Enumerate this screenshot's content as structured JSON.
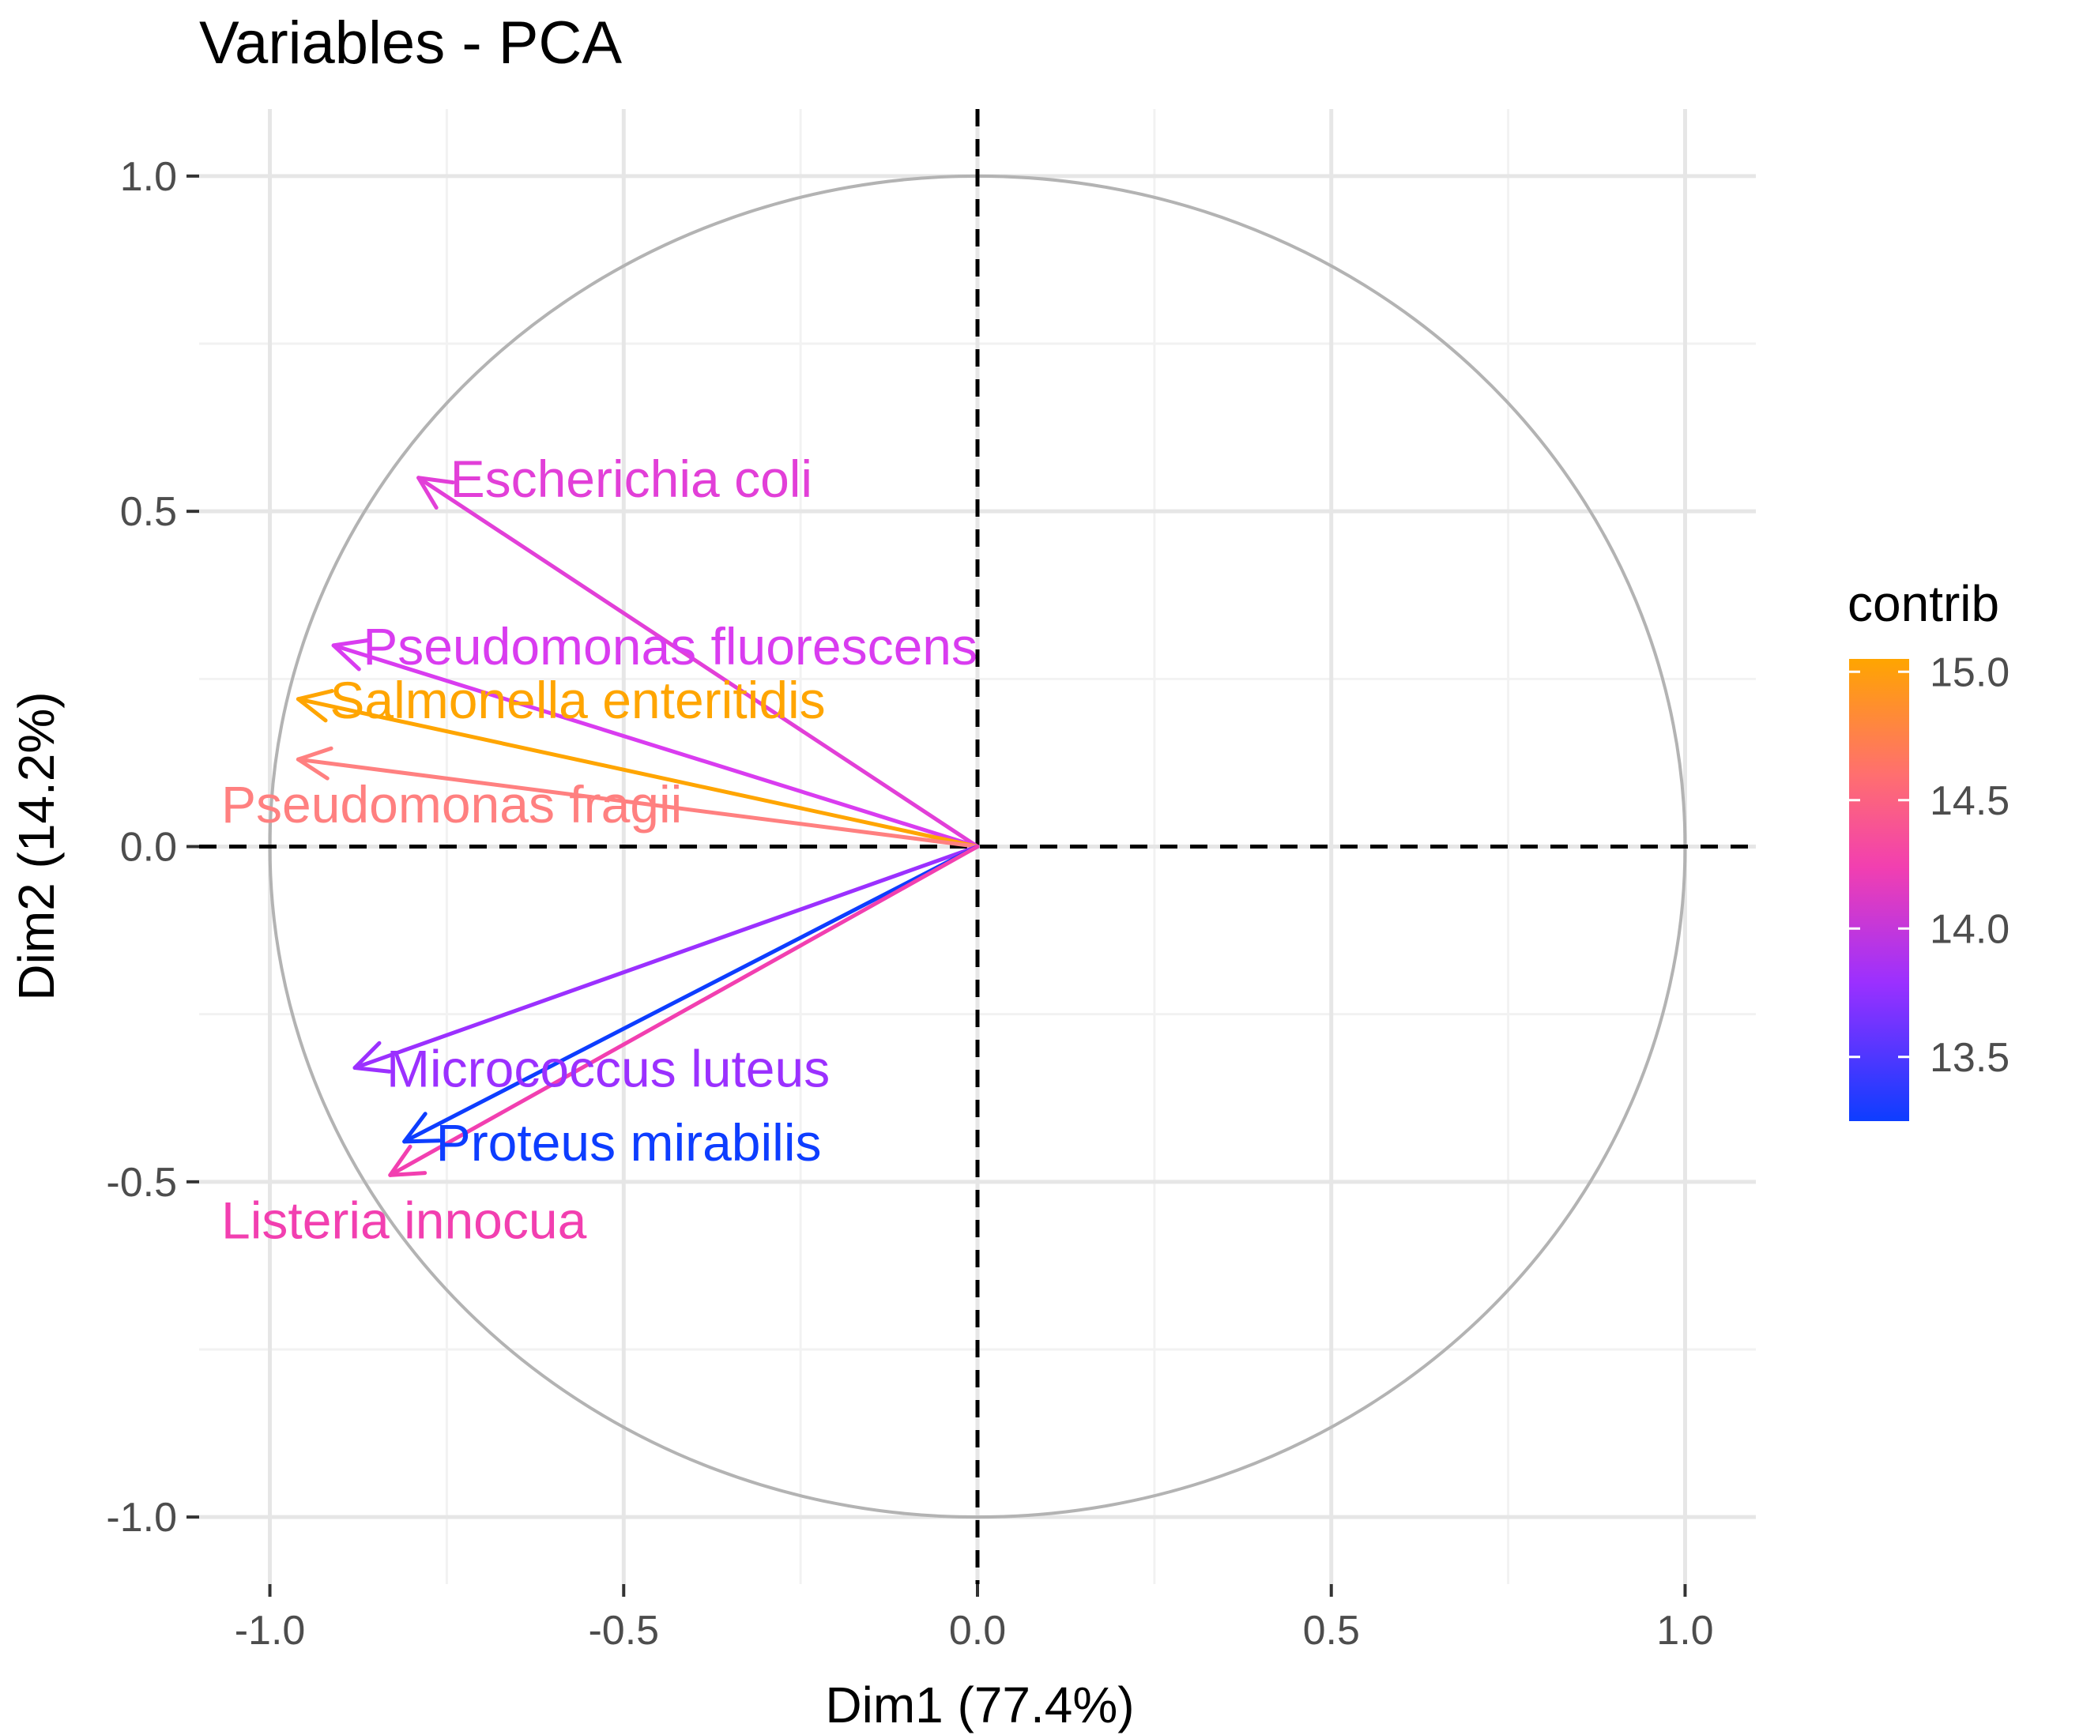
{
  "chart_data": {
    "type": "scatter",
    "subtype": "pca-variable-correlation-circle",
    "title": "Variables - PCA",
    "xlabel": "Dim1 (77.4%)",
    "ylabel": "Dim2 (14.2%)",
    "xlim": [
      -1.1,
      1.1
    ],
    "ylim": [
      -1.1,
      1.1
    ],
    "x_ticks": [
      {
        "value": -1.0,
        "label": "-1.0"
      },
      {
        "value": -0.5,
        "label": "-0.5"
      },
      {
        "value": 0.0,
        "label": "0.0"
      },
      {
        "value": 0.5,
        "label": "0.5"
      },
      {
        "value": 1.0,
        "label": "1.0"
      }
    ],
    "y_ticks": [
      {
        "value": 1.0,
        "label": "1.0"
      },
      {
        "value": 0.5,
        "label": "0.5"
      },
      {
        "value": 0.0,
        "label": "0.0"
      },
      {
        "value": -0.5,
        "label": "-0.5"
      },
      {
        "value": -1.0,
        "label": "-1.0"
      }
    ],
    "grid": true,
    "unit_circle": true,
    "zero_lines": "dashed",
    "colors": {
      "circle": "#b3b3b3",
      "grid_major": "#e6e6e6",
      "grid_minor": "#f2f2f2",
      "axis_text": "#4d4d4d",
      "zero_line": "#000000"
    },
    "variables": [
      {
        "name": "Escherichia coli",
        "x": -0.79,
        "y": 0.55,
        "contrib": 14.3,
        "color": "#e23fd8",
        "label_anchor": "end"
      },
      {
        "name": "Pseudomonas fluorescens",
        "x": -0.91,
        "y": 0.3,
        "contrib": 14.2,
        "color": "#d93cf0",
        "label_anchor": "end"
      },
      {
        "name": "Salmonella enteritidis",
        "x": -0.96,
        "y": 0.22,
        "contrib": 15.0,
        "color": "#ffa500",
        "label_anchor": "end"
      },
      {
        "name": "Pseudomonas fragii",
        "x": -0.96,
        "y": 0.13,
        "contrib": 14.75,
        "color": "#ff8080",
        "label_anchor": "start"
      },
      {
        "name": "Micrococcus luteus",
        "x": -0.88,
        "y": -0.33,
        "contrib": 13.95,
        "color": "#9b30ff",
        "label_anchor": "end"
      },
      {
        "name": "Proteus mirabilis",
        "x": -0.81,
        "y": -0.44,
        "contrib": 13.3,
        "color": "#0d3dff",
        "label_anchor": "end"
      },
      {
        "name": "Listeria innocua",
        "x": -0.83,
        "y": -0.49,
        "contrib": 14.6,
        "color": "#f23fb0",
        "label_anchor": "start"
      }
    ],
    "legend": {
      "title": "contrib",
      "placement": "right",
      "range": [
        13.25,
        15.05
      ],
      "ticks": [
        {
          "value": 15.0,
          "label": "15.0"
        },
        {
          "value": 14.5,
          "label": "14.5"
        },
        {
          "value": 14.0,
          "label": "14.0"
        },
        {
          "value": 13.5,
          "label": "13.5"
        }
      ],
      "gradient_stops": [
        {
          "offset": "0%",
          "color": "#ffa500"
        },
        {
          "offset": "25%",
          "color": "#ff6f6f"
        },
        {
          "offset": "45%",
          "color": "#f23fb0"
        },
        {
          "offset": "70%",
          "color": "#9b30ff"
        },
        {
          "offset": "100%",
          "color": "#0d3dff"
        }
      ]
    }
  }
}
